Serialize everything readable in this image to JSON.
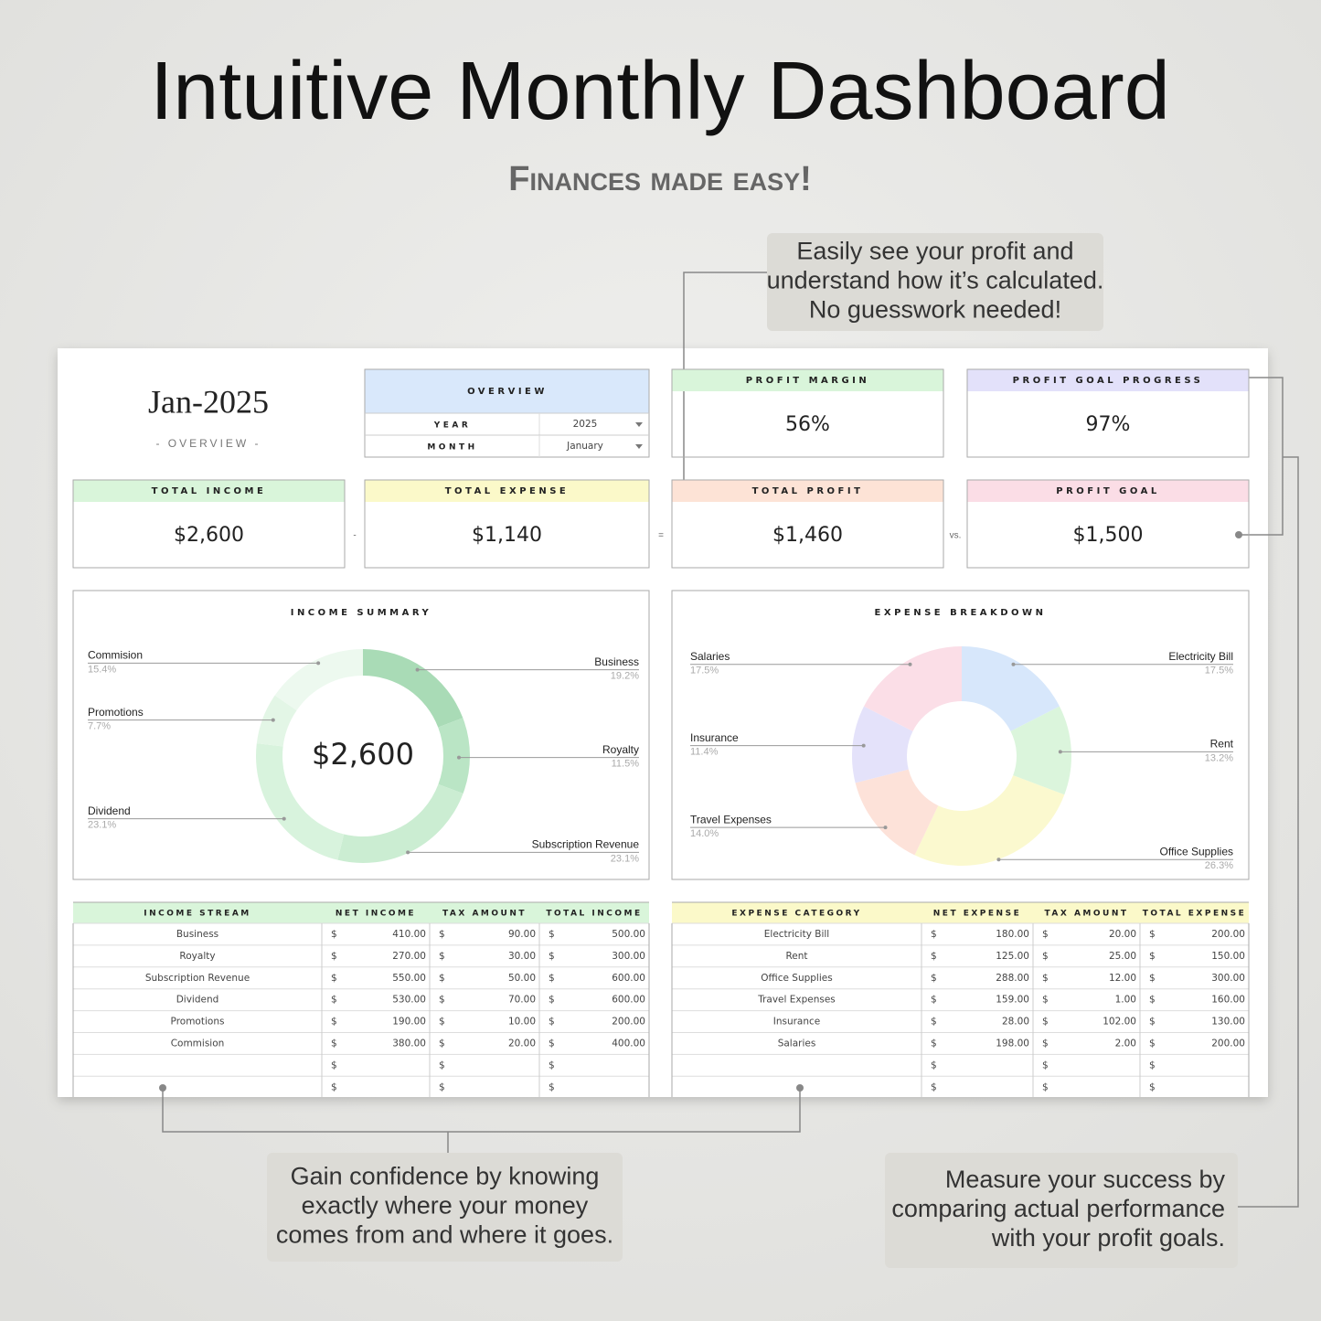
{
  "header": {
    "title": "Intuitive Monthly Dashboard",
    "subtitle": "Finances made easy!"
  },
  "callouts": [
    {
      "lines": [
        "Easily see your profit and",
        "understand how it’s calculated.",
        "No guesswork needed!"
      ]
    },
    {
      "lines": [
        "Gain confidence by knowing",
        "exactly where your money",
        "comes from and where it goes."
      ]
    },
    {
      "lines": [
        "Measure your success by",
        "comparing actual performance",
        "with your profit goals."
      ]
    }
  ],
  "dashboard": {
    "period": "Jan-2025",
    "period_caption": "- OVERVIEW -",
    "overview": {
      "title": "OVERVIEW",
      "rows": [
        [
          "YEAR",
          "2025"
        ],
        [
          "MONTH",
          "January"
        ]
      ]
    },
    "metrics": [
      {
        "label": "PROFIT MARGIN",
        "value": "56%"
      },
      {
        "label": "PROFIT GOAL PROGRESS",
        "value": "97%"
      }
    ],
    "totals": [
      {
        "label": "TOTAL INCOME",
        "value": "$2,600"
      },
      {
        "label": "TOTAL EXPENSE",
        "value": "$1,140"
      },
      {
        "label": "TOTAL PROFIT",
        "value": "$1,460"
      },
      {
        "label": "PROFIT GOAL",
        "value": "$1,500"
      }
    ],
    "operators": [
      "-",
      "=",
      "vs."
    ],
    "currency": "$",
    "income_table": {
      "headers": [
        "INCOME STREAM",
        "NET INCOME",
        "TAX AMOUNT",
        "TOTAL INCOME"
      ],
      "rows": [
        [
          "Business",
          "410.00",
          "90.00",
          "500.00"
        ],
        [
          "Royalty",
          "270.00",
          "30.00",
          "300.00"
        ],
        [
          "Subscription Revenue",
          "550.00",
          "50.00",
          "600.00"
        ],
        [
          "Dividend",
          "530.00",
          "70.00",
          "600.00"
        ],
        [
          "Promotions",
          "190.00",
          "10.00",
          "200.00"
        ],
        [
          "Commision",
          "380.00",
          "20.00",
          "400.00"
        ]
      ]
    },
    "expense_table": {
      "headers": [
        "EXPENSE CATEGORY",
        "NET EXPENSE",
        "TAX AMOUNT",
        "TOTAL EXPENSE"
      ],
      "rows": [
        [
          "Electricity Bill",
          "180.00",
          "20.00",
          "200.00"
        ],
        [
          "Rent",
          "125.00",
          "25.00",
          "150.00"
        ],
        [
          "Office Supplies",
          "288.00",
          "12.00",
          "300.00"
        ],
        [
          "Travel Expenses",
          "159.00",
          "1.00",
          "160.00"
        ],
        [
          "Insurance",
          "28.00",
          "102.00",
          "130.00"
        ],
        [
          "Salaries",
          "198.00",
          "2.00",
          "200.00"
        ]
      ]
    }
  },
  "chart_data": [
    {
      "type": "donut",
      "title": "INCOME SUMMARY",
      "center_label": "$2,600",
      "categories": [
        "Business",
        "Royalty",
        "Subscription Revenue",
        "Dividend",
        "Promotions",
        "Commision"
      ],
      "values": [
        19.2,
        11.5,
        23.1,
        23.1,
        7.7,
        15.4
      ],
      "value_labels": [
        "19.2%",
        "11.5%",
        "23.1%",
        "23.1%",
        "7.7%",
        "15.4%"
      ],
      "colors": [
        "#a9dbb6",
        "#bae5c5",
        "#cbedd2",
        "#d8f3dd",
        "#e3f6e6",
        "#edf9ef"
      ]
    },
    {
      "type": "donut",
      "title": "EXPENSE BREAKDOWN",
      "categories": [
        "Electricity Bill",
        "Rent",
        "Office Supplies",
        "Travel Expenses",
        "Insurance",
        "Salaries"
      ],
      "values": [
        17.5,
        13.2,
        26.3,
        14,
        11.4,
        17.5
      ],
      "value_labels": [
        "17.5%",
        "13.2%",
        "26.3%",
        "14.0%",
        "11.4%",
        "17.5%"
      ],
      "colors": [
        "#d7e7fb",
        "#dbf5dc",
        "#fbf9cf",
        "#fde2d9",
        "#e4e2fa",
        "#fbdee7"
      ]
    }
  ]
}
